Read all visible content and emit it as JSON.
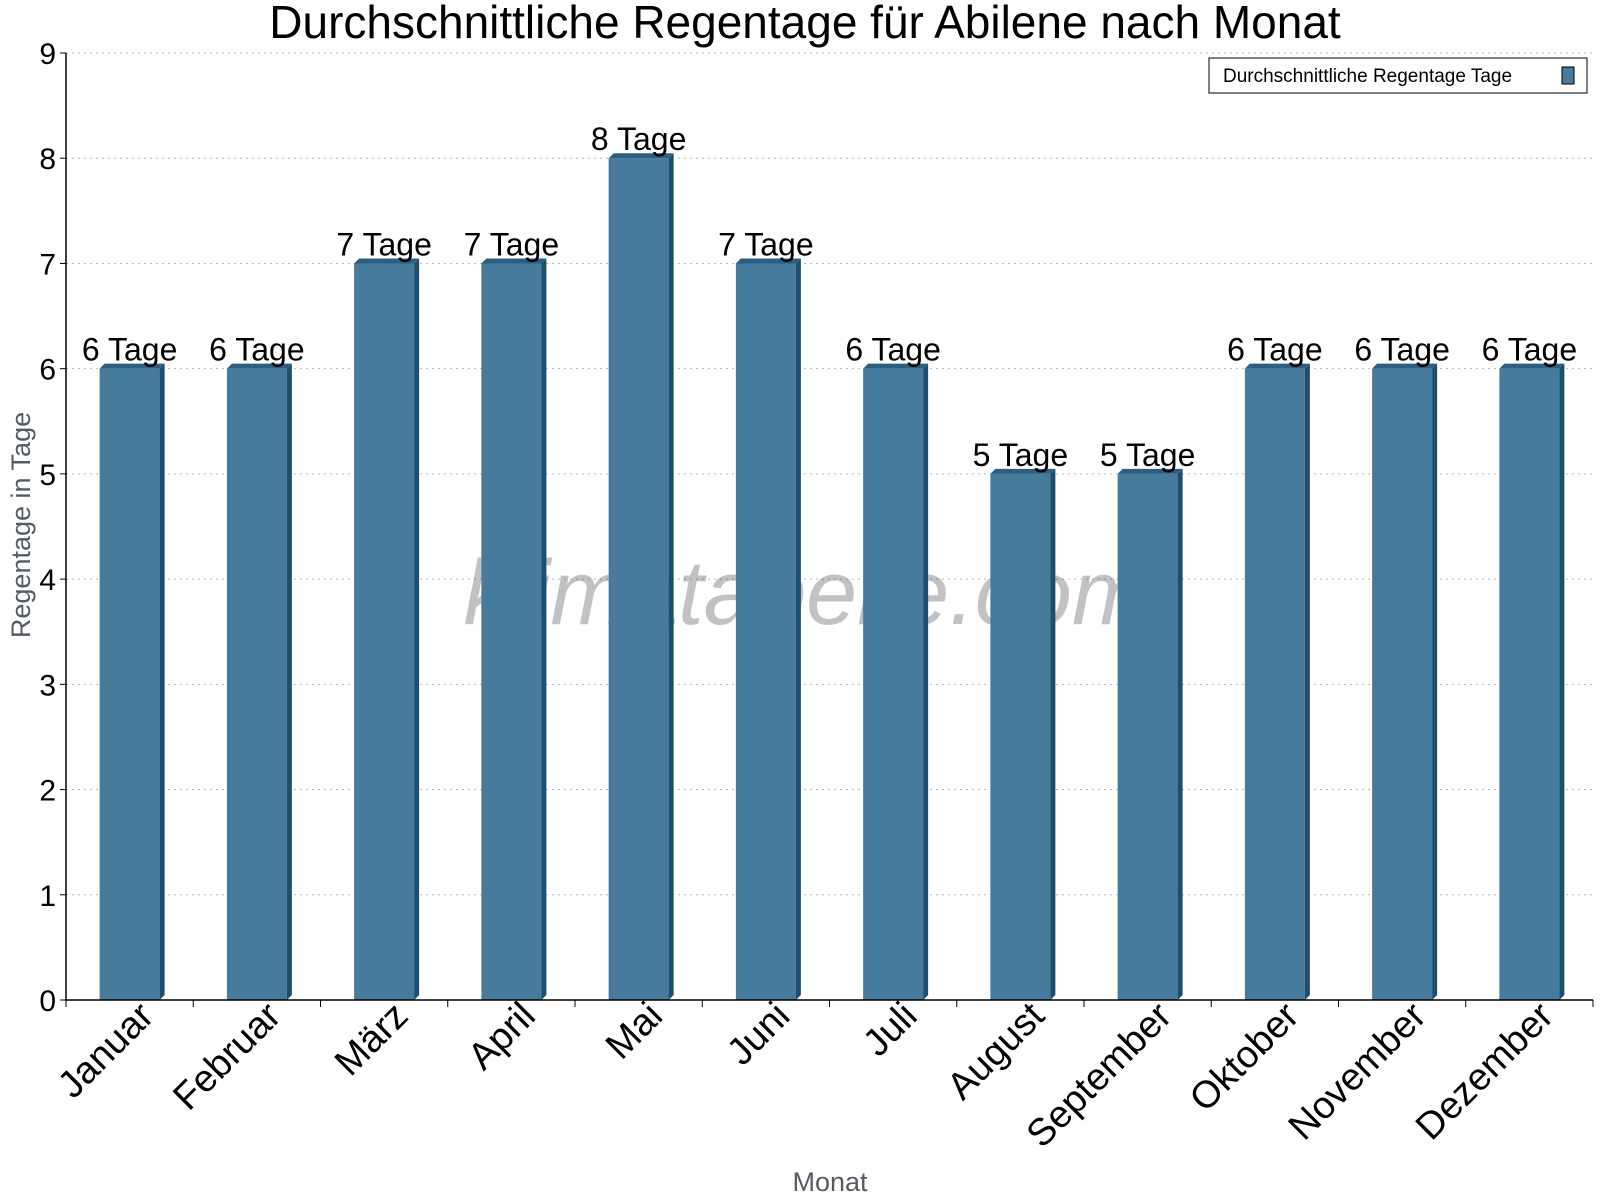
{
  "chart_data": {
    "type": "bar",
    "title": "Durchschnittliche Regentage für Abilene nach Monat",
    "xlabel": "Monat",
    "ylabel": "Regentage in Tage",
    "categories": [
      "Januar",
      "Februar",
      "März",
      "April",
      "Mai",
      "Juni",
      "Juli",
      "August",
      "September",
      "Oktober",
      "November",
      "Dezember"
    ],
    "series": [
      {
        "name": "Durchschnittliche Regentage Tage",
        "values": [
          6,
          6,
          7,
          7,
          8,
          7,
          6,
          5,
          5,
          6,
          6,
          6
        ],
        "data_labels": [
          "6 Tage",
          "6 Tage",
          "7 Tage",
          "7 Tage",
          "8 Tage",
          "7 Tage",
          "6 Tage",
          "5 Tage",
          "5 Tage",
          "6 Tage",
          "6 Tage",
          "6 Tage"
        ]
      }
    ],
    "ylim": [
      0,
      9
    ],
    "yticks": [
      "0",
      "1",
      "2",
      "3",
      "4",
      "5",
      "6",
      "7",
      "8",
      "9"
    ],
    "grid": true,
    "legend_position": "top-right",
    "colors": {
      "bar": "#467b9e",
      "bar_side": "#1e4d6e",
      "bar_top": "#2c5f82"
    },
    "watermark": "klimatabelle.com"
  }
}
